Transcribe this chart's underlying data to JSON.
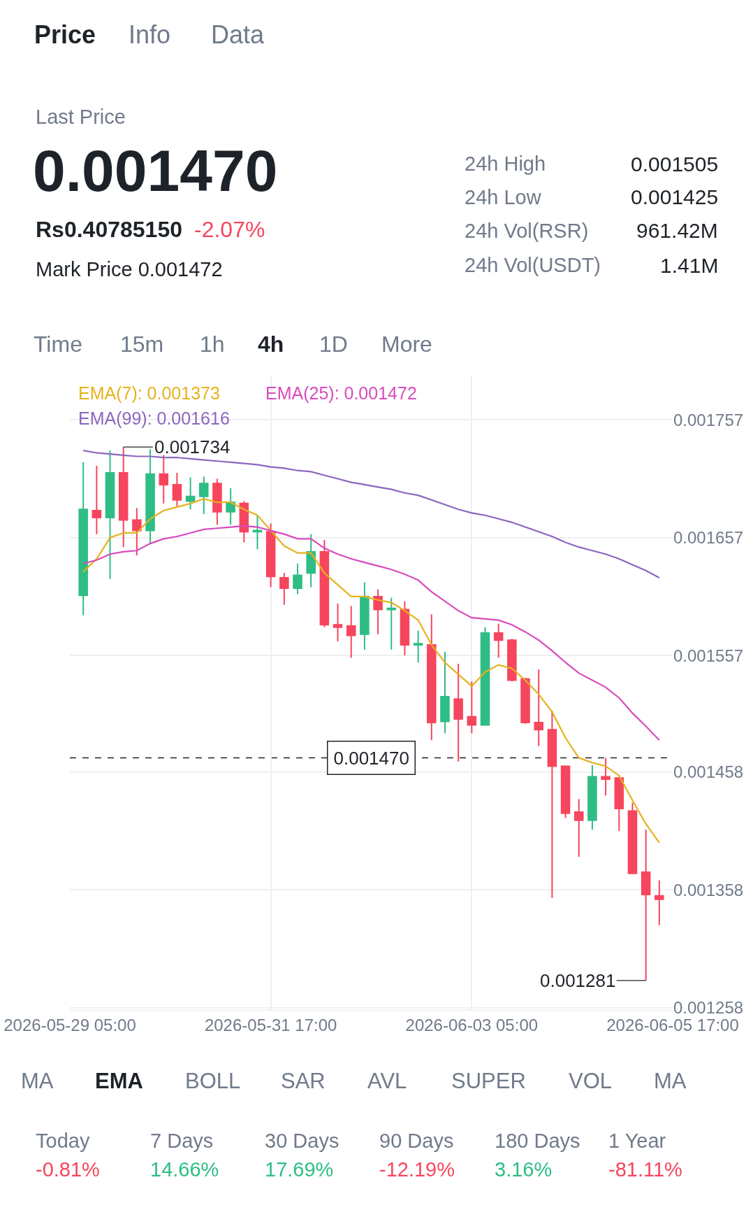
{
  "chart_data": {
    "type": "candlestick",
    "x": [
      "2026-05-29T09:00",
      "2026-05-29T13:00",
      "2026-05-29T17:00",
      "2026-05-29T21:00",
      "2026-05-30T01:00",
      "2026-05-30T05:00",
      "2026-05-30T09:00",
      "2026-05-30T13:00",
      "2026-05-30T17:00",
      "2026-05-30T21:00",
      "2026-05-31T01:00",
      "2026-05-31T05:00",
      "2026-05-31T09:00",
      "2026-05-31T13:00",
      "2026-05-31T17:00",
      "2026-05-31T21:00",
      "2026-06-01T01:00",
      "2026-06-01T05:00",
      "2026-06-01T09:00",
      "2026-06-01T13:00",
      "2026-06-01T17:00",
      "2026-06-01T21:00",
      "2026-06-02T01:00",
      "2026-06-02T05:00",
      "2026-06-02T09:00",
      "2026-06-02T13:00",
      "2026-06-02T17:00",
      "2026-06-02T21:00",
      "2026-06-03T01:00",
      "2026-06-03T05:00",
      "2026-06-03T09:00",
      "2026-06-03T13:00",
      "2026-06-03T17:00",
      "2026-06-03T21:00",
      "2026-06-04T01:00",
      "2026-06-04T05:00",
      "2026-06-04T09:00",
      "2026-06-04T13:00",
      "2026-06-04T17:00",
      "2026-06-04T21:00",
      "2026-06-05T01:00",
      "2026-06-05T05:00",
      "2026-06-05T09:00",
      "2026-06-05T13:00"
    ],
    "ohlc": [
      [
        0.001608,
        0.001721,
        0.001591,
        0.001681
      ],
      [
        0.00168,
        0.001718,
        0.00166,
        0.001674
      ],
      [
        0.001674,
        0.001731,
        0.001622,
        0.001712
      ],
      [
        0.001712,
        0.001734,
        0.001649,
        0.001672
      ],
      [
        0.001672,
        0.001682,
        0.001642,
        0.001663
      ],
      [
        0.001663,
        0.001732,
        0.001652,
        0.001711
      ],
      [
        0.001711,
        0.001727,
        0.001686,
        0.001702
      ],
      [
        0.001702,
        0.001712,
        0.001683,
        0.001689
      ],
      [
        0.001688,
        0.001708,
        0.001681,
        0.001692
      ],
      [
        0.001692,
        0.001709,
        0.001677,
        0.001703
      ],
      [
        0.001703,
        0.001707,
        0.001668,
        0.001679
      ],
      [
        0.001679,
        0.001699,
        0.001668,
        0.001687
      ],
      [
        0.001686,
        0.001688,
        0.001653,
        0.001662
      ],
      [
        0.001662,
        0.001676,
        0.001647,
        0.001663
      ],
      [
        0.001662,
        0.001669,
        0.001615,
        0.001624
      ],
      [
        0.001623,
        0.001627,
        0.0016,
        0.001614
      ],
      [
        0.001614,
        0.001635,
        0.001609,
        0.001625
      ],
      [
        0.001627,
        0.00166,
        0.001615,
        0.001645
      ],
      [
        0.001645,
        0.001655,
        0.001581,
        0.001583
      ],
      [
        0.001583,
        0.001601,
        0.001569,
        0.001581
      ],
      [
        0.001582,
        0.001599,
        0.001555,
        0.001574
      ],
      [
        0.001575,
        0.001619,
        0.001562,
        0.001607
      ],
      [
        0.001607,
        0.001613,
        0.001575,
        0.001596
      ],
      [
        0.001596,
        0.001606,
        0.001562,
        0.001597
      ],
      [
        0.001596,
        0.001603,
        0.001557,
        0.001566
      ],
      [
        0.001566,
        0.001578,
        0.001551,
        0.001567
      ],
      [
        0.001566,
        0.001592,
        0.001485,
        0.0015
      ],
      [
        0.001501,
        0.00156,
        0.001491,
        0.001522
      ],
      [
        0.00152,
        0.00155,
        0.001467,
        0.001503
      ],
      [
        0.001505,
        0.001535,
        0.001491,
        0.001498
      ],
      [
        0.001498,
        0.001581,
        0.001498,
        0.001576
      ],
      [
        0.001576,
        0.001584,
        0.001555,
        0.00157
      ],
      [
        0.00157,
        0.001571,
        0.001535,
        0.001536
      ],
      [
        0.001537,
        0.001538,
        0.001499,
        0.0015
      ],
      [
        0.0015,
        0.001545,
        0.00148,
        0.001494
      ],
      [
        0.001494,
        0.00151,
        0.001351,
        0.001463
      ],
      [
        0.001463,
        0.001463,
        0.001419,
        0.001423
      ],
      [
        0.001424,
        0.001435,
        0.001386,
        0.001417
      ],
      [
        0.001417,
        0.001464,
        0.001409,
        0.001454
      ],
      [
        0.001454,
        0.00147,
        0.001438,
        0.001452
      ],
      [
        0.001453,
        0.001453,
        0.001408,
        0.001427
      ],
      [
        0.001425,
        0.001432,
        0.001372,
        0.001372
      ],
      [
        0.001373,
        0.001409,
        0.001281,
        0.001354
      ],
      [
        0.001353,
        0.001366,
        0.001328,
        0.00135
      ]
    ],
    "colors": [
      "#2ebd85",
      "#f6465d",
      "#2ebd85",
      "#f6465d",
      "#f6465d",
      "#2ebd85",
      "#f6465d",
      "#f6465d",
      "#2ebd85",
      "#2ebd85",
      "#f6465d",
      "#2ebd85",
      "#f6465d",
      "#2ebd85",
      "#f6465d",
      "#f6465d",
      "#2ebd85",
      "#2ebd85",
      "#f6465d",
      "#f6465d",
      "#f6465d",
      "#2ebd85",
      "#f6465d",
      "#2ebd85",
      "#f6465d",
      "#2ebd85",
      "#f6465d",
      "#2ebd85",
      "#f6465d",
      "#f6465d",
      "#2ebd85",
      "#f6465d",
      "#f6465d",
      "#f6465d",
      "#f6465d",
      "#f6465d",
      "#f6465d",
      "#f6465d",
      "#2ebd85",
      "#f6465d",
      "#f6465d",
      "#f6465d",
      "#f6465d",
      "#f6465d"
    ],
    "series": [
      {
        "type": "line",
        "name": "EMA(7): 0.001373",
        "color": "#e6b21e",
        "values": [
          0.001628,
          0.001639,
          0.001657,
          0.001661,
          0.001661,
          0.001673,
          0.00168,
          0.001683,
          0.001686,
          0.00169,
          0.001687,
          0.001687,
          0.001681,
          0.001676,
          0.001663,
          0.00165,
          0.001644,
          0.001644,
          0.001627,
          0.001617,
          0.001607,
          0.001607,
          0.001604,
          0.001602,
          0.001595,
          0.001587,
          0.001566,
          0.001551,
          0.001541,
          0.001531,
          0.001543,
          0.001549,
          0.001546,
          0.001536,
          0.001524,
          0.001509,
          0.001487,
          0.00147,
          0.001466,
          0.001463,
          0.001455,
          0.001434,
          0.001414,
          0.001398
        ]
      },
      {
        "type": "line",
        "name": "EMA(25): 0.001472",
        "color": "#d84bbd",
        "values": [
          0.001635,
          0.001638,
          0.001643,
          0.001645,
          0.001646,
          0.001652,
          0.001656,
          0.001658,
          0.001661,
          0.001664,
          0.001665,
          0.001666,
          0.001667,
          0.001666,
          0.001663,
          0.00166,
          0.001656,
          0.001656,
          0.001648,
          0.001643,
          0.001639,
          0.001636,
          0.001633,
          0.00163,
          0.001626,
          0.001621,
          0.001611,
          0.001603,
          0.001595,
          0.001589,
          0.001588,
          0.001587,
          0.001583,
          0.001577,
          0.00157,
          0.001561,
          0.001551,
          0.001542,
          0.001536,
          0.00153,
          0.001521,
          0.001508,
          0.001497,
          0.001485
        ]
      },
      {
        "type": "line",
        "name": "EMA(99): 0.001616",
        "color": "#8c66be",
        "values": [
          0.001731,
          0.001729,
          0.001728,
          0.001727,
          0.001726,
          0.001726,
          0.001725,
          0.001725,
          0.001724,
          0.001723,
          0.001722,
          0.001721,
          0.00172,
          0.001719,
          0.001717,
          0.001716,
          0.001714,
          0.001713,
          0.00171,
          0.001707,
          0.001704,
          0.001702,
          0.0017,
          0.001698,
          0.001695,
          0.001693,
          0.001689,
          0.001685,
          0.001681,
          0.001678,
          0.001676,
          0.001673,
          0.00167,
          0.001666,
          0.001662,
          0.001658,
          0.001653,
          0.001649,
          0.001646,
          0.001643,
          0.001639,
          0.001634,
          0.001629,
          0.001623
        ]
      }
    ],
    "xlim": [
      "2026-05-29T05:00",
      "2026-06-05T17:00"
    ],
    "xticks": [
      {
        "value": "2026-05-29T05:00",
        "label": "2026-05-29 05:00"
      },
      {
        "value": "2026-05-31T17:00",
        "label": "2026-05-31 17:00"
      },
      {
        "value": "2026-06-03T05:00",
        "label": "2026-06-03 05:00"
      },
      {
        "value": "2026-06-05T17:00",
        "label": "2026-06-05 17:00"
      }
    ],
    "ylim": [
      0.001256,
      0.001794
    ],
    "yticks": [
      0.001757,
      0.001657,
      0.001557,
      0.001458,
      0.001358,
      0.001258
    ],
    "grid": true,
    "legend": "top left",
    "ref_lines": [
      {
        "axis": "y",
        "value": 0.00147,
        "label": "0.001470",
        "line_style": "dashed",
        "color": "#1e2329"
      }
    ],
    "annotations": [
      "Price",
      "Info",
      "Data",
      "Last Price",
      "0.001470",
      "Rs0.40785150",
      "-2.07%",
      "Mark Price 0.001472",
      "24h High",
      "0.001505",
      "24h Low",
      "0.001425",
      "24h Vol(RSR)",
      "961.42M",
      "24h Vol(USDT)",
      "1.41M",
      "Time",
      "15m",
      "1h",
      "4h",
      "1D",
      "More",
      "MA",
      "EMA",
      "BOLL",
      "SAR",
      "AVL",
      "SUPER",
      "VOL",
      "MA",
      "Today",
      "-0.81%",
      "7 Days",
      "14.66%",
      "30 Days",
      "17.69%",
      "90 Days",
      "-12.19%",
      "180 Days",
      "3.16%",
      "1 Year",
      "-81.11%",
      {
        "text": "0.001734",
        "x": "2026-05-29T21:00",
        "y": 0.001734
      },
      {
        "text": "0.001281",
        "x": "2026-06-05T09:00",
        "y": 0.001281
      }
    ]
  }
}
